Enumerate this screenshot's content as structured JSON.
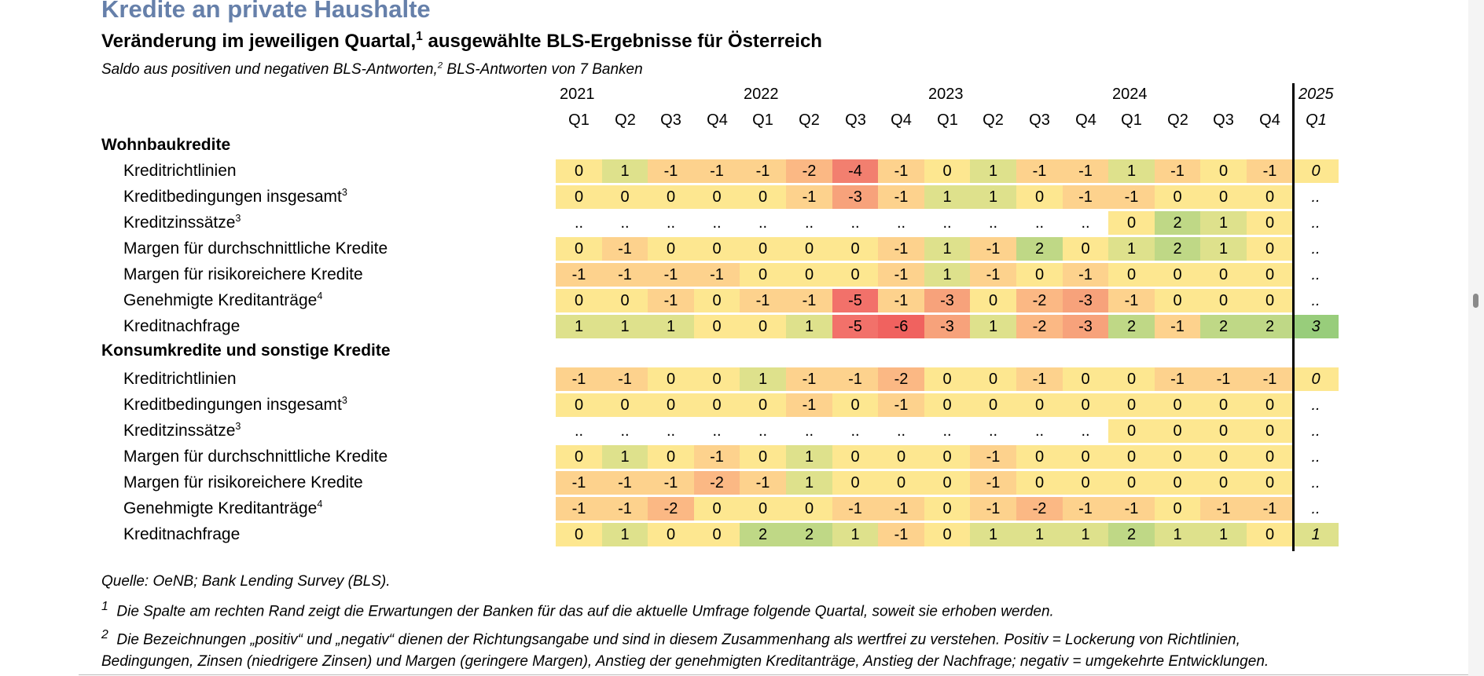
{
  "title": "Kredite an private Haushalte",
  "subtitle": {
    "text": "Veränderung im jeweiligen Quartal,",
    "sup": "1",
    "rest": " ausgewählte BLS-Ergebnisse für Österreich"
  },
  "note": {
    "text": "Saldo aus positiven und negativen BLS-Antworten,",
    "sup": "2",
    "rest": " BLS-Antworten von 7 Banken"
  },
  "years": [
    "2021",
    "2022",
    "2023",
    "2024",
    "2025"
  ],
  "quarters": [
    "Q1",
    "Q2",
    "Q3",
    "Q4",
    "Q1",
    "Q2",
    "Q3",
    "Q4",
    "Q1",
    "Q2",
    "Q3",
    "Q4",
    "Q1",
    "Q2",
    "Q3",
    "Q4",
    "Q1"
  ],
  "sections": [
    {
      "title": "Wohnbaukredite",
      "rows": [
        {
          "label": "Kreditrichtlinien",
          "sup": "",
          "values": [
            "0",
            "1",
            "-1",
            "-1",
            "-1",
            "-2",
            "-4",
            "-1",
            "0",
            "1",
            "-1",
            "-1",
            "1",
            "-1",
            "0",
            "-1",
            "0"
          ]
        },
        {
          "label": "Kreditbedingungen insgesamt",
          "sup": "3",
          "values": [
            "0",
            "0",
            "0",
            "0",
            "0",
            "-1",
            "-3",
            "-1",
            "1",
            "1",
            "0",
            "-1",
            "-1",
            "0",
            "0",
            "0",
            ".."
          ]
        },
        {
          "label": "Kreditzinssätze",
          "sup": "3",
          "values": [
            "..",
            "..",
            "..",
            "..",
            "..",
            "..",
            "..",
            "..",
            "..",
            "..",
            "..",
            "..",
            "0",
            "2",
            "1",
            "0",
            ".."
          ]
        },
        {
          "label": "Margen für durchschnittliche Kredite",
          "sup": "",
          "values": [
            "0",
            "-1",
            "0",
            "0",
            "0",
            "0",
            "0",
            "-1",
            "1",
            "-1",
            "2",
            "0",
            "1",
            "2",
            "1",
            "0",
            ".."
          ]
        },
        {
          "label": "Margen für risikoreichere Kredite",
          "sup": "",
          "values": [
            "-1",
            "-1",
            "-1",
            "-1",
            "0",
            "0",
            "0",
            "-1",
            "1",
            "-1",
            "0",
            "-1",
            "0",
            "0",
            "0",
            "0",
            ".."
          ]
        },
        {
          "label": "Genehmigte Kreditanträge",
          "sup": "4",
          "values": [
            "0",
            "0",
            "-1",
            "0",
            "-1",
            "-1",
            "-5",
            "-1",
            "-3",
            "0",
            "-2",
            "-3",
            "-1",
            "0",
            "0",
            "0",
            ".."
          ]
        },
        {
          "label": "Kreditnachfrage",
          "sup": "",
          "values": [
            "1",
            "1",
            "1",
            "0",
            "0",
            "1",
            "-5",
            "-6",
            "-3",
            "1",
            "-2",
            "-3",
            "2",
            "-1",
            "2",
            "2",
            "3"
          ]
        }
      ]
    },
    {
      "title": "Konsumkredite und sonstige Kredite",
      "rows": [
        {
          "label": "Kreditrichtlinien",
          "sup": "",
          "values": [
            "-1",
            "-1",
            "0",
            "0",
            "1",
            "-1",
            "-1",
            "-2",
            "0",
            "0",
            "-1",
            "0",
            "0",
            "-1",
            "-1",
            "-1",
            "0"
          ]
        },
        {
          "label": "Kreditbedingungen insgesamt",
          "sup": "3",
          "values": [
            "0",
            "0",
            "0",
            "0",
            "0",
            "-1",
            "0",
            "-1",
            "0",
            "0",
            "0",
            "0",
            "0",
            "0",
            "0",
            "0",
            ".."
          ]
        },
        {
          "label": "Kreditzinssätze",
          "sup": "3",
          "values": [
            "..",
            "..",
            "..",
            "..",
            "..",
            "..",
            "..",
            "..",
            "..",
            "..",
            "..",
            "..",
            "0",
            "0",
            "0",
            "0",
            ".."
          ]
        },
        {
          "label": "Margen für durchschnittliche Kredite",
          "sup": "",
          "values": [
            "0",
            "1",
            "0",
            "-1",
            "0",
            "1",
            "0",
            "0",
            "0",
            "-1",
            "0",
            "0",
            "0",
            "0",
            "0",
            "0",
            ".."
          ]
        },
        {
          "label": "Margen für risikoreichere Kredite",
          "sup": "",
          "values": [
            "-1",
            "-1",
            "-1",
            "-2",
            "-1",
            "1",
            "0",
            "0",
            "0",
            "-1",
            "0",
            "0",
            "0",
            "0",
            "0",
            "0",
            ".."
          ]
        },
        {
          "label": "Genehmigte Kreditanträge",
          "sup": "4",
          "values": [
            "-1",
            "-1",
            "-2",
            "0",
            "0",
            "0",
            "-1",
            "-1",
            "0",
            "-1",
            "-2",
            "-1",
            "-1",
            "0",
            "-1",
            "-1",
            ".."
          ]
        },
        {
          "label": "Kreditnachfrage",
          "sup": "",
          "values": [
            "0",
            "1",
            "0",
            "0",
            "2",
            "2",
            "1",
            "-1",
            "0",
            "1",
            "1",
            "1",
            "2",
            "1",
            "1",
            "0",
            "1"
          ]
        }
      ]
    }
  ],
  "colors": {
    "-6": "#f0625f",
    "-5": "#f2716a",
    "-4": "#f27f6f",
    "-3": "#f7a27b",
    "-2": "#fbb884",
    "-1": "#fdd28d",
    "0": "#fde790",
    "1": "#dee18c",
    "2": "#bfd886",
    "3": "#98cd7b"
  },
  "footnotes": {
    "source": "Quelle: OeNB; Bank Lending Survey (BLS).",
    "fn1": {
      "sup": "1",
      "text": "Die Spalte am rechten Rand zeigt die Erwartungen der Banken für das auf die aktuelle Umfrage folgende Quartal, soweit sie erhoben werden."
    },
    "fn2": {
      "sup": "2",
      "line1": "Die Bezeichnungen „positiv“ und „negativ“ dienen der Richtungsangabe und sind in diesem Zusammenhang als wertfrei zu verstehen. Positiv = Lockerung von Richtlinien,",
      "line2": "Bedingungen, Zinsen (niedrigere Zinsen) und Margen (geringere Margen), Anstieg der genehmigten Kreditanträge, Anstieg der Nachfrage; negativ = umgekehrte Entwicklungen."
    }
  }
}
